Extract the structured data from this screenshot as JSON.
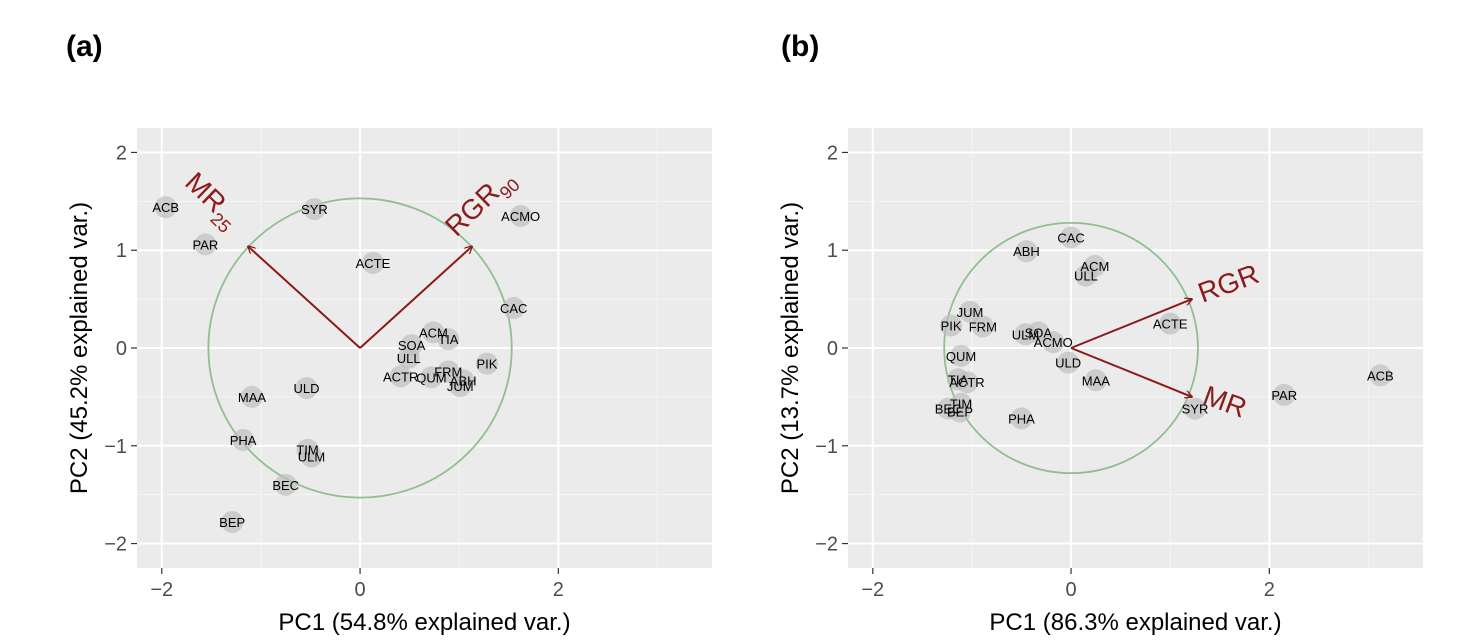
{
  "panels": [
    {
      "label": "(a)"
    },
    {
      "label": "(b)"
    }
  ],
  "chart_data": [
    {
      "type": "scatter",
      "subtype": "pca-biplot",
      "xlabel": "PC1 (54.8% explained var.)",
      "ylabel": "PC2 (45.2% explained var.)",
      "xlim": [
        -2.25,
        3.55
      ],
      "ylim": [
        -2.25,
        2.25
      ],
      "xticks": [
        -2,
        0,
        2
      ],
      "yticks": [
        -2,
        -1,
        0,
        1,
        2
      ],
      "tick_labels_x": [
        "−2",
        "0",
        "2"
      ],
      "tick_labels_y": [
        "−2",
        "−1",
        "0",
        "1",
        "2"
      ],
      "grid": true,
      "circle_radius": 1.53,
      "circle_color": "#8fbf8f",
      "arrow_color": "#8b1a1a",
      "points": [
        {
          "label": "ACB",
          "x": -1.96,
          "y": 1.44
        },
        {
          "label": "PAR",
          "x": -1.56,
          "y": 1.06
        },
        {
          "label": "SYR",
          "x": -0.46,
          "y": 1.42
        },
        {
          "label": "ACTE",
          "x": 0.13,
          "y": 0.87
        },
        {
          "label": "ACMO",
          "x": 1.62,
          "y": 1.35
        },
        {
          "label": "CAC",
          "x": 1.55,
          "y": 0.41
        },
        {
          "label": "ACM",
          "x": 0.74,
          "y": 0.16
        },
        {
          "label": "TIA",
          "x": 0.89,
          "y": 0.09
        },
        {
          "label": "SOA",
          "x": 0.52,
          "y": 0.03
        },
        {
          "label": "ULL",
          "x": 0.49,
          "y": -0.1
        },
        {
          "label": "PIK",
          "x": 1.28,
          "y": -0.16
        },
        {
          "label": "FRM",
          "x": 0.89,
          "y": -0.24
        },
        {
          "label": "ACTR",
          "x": 0.41,
          "y": -0.29
        },
        {
          "label": "QUM",
          "x": 0.72,
          "y": -0.3
        },
        {
          "label": "ABH",
          "x": 1.04,
          "y": -0.33
        },
        {
          "label": "JUM",
          "x": 1.01,
          "y": -0.39
        },
        {
          "label": "MAA",
          "x": -1.09,
          "y": -0.5
        },
        {
          "label": "ULD",
          "x": -0.54,
          "y": -0.41
        },
        {
          "label": "PHA",
          "x": -1.18,
          "y": -0.94
        },
        {
          "label": "TIM",
          "x": -0.53,
          "y": -1.04
        },
        {
          "label": "ULM",
          "x": -0.49,
          "y": -1.11
        },
        {
          "label": "BEC",
          "x": -0.75,
          "y": -1.4
        },
        {
          "label": "BEP",
          "x": -1.29,
          "y": -1.78
        }
      ],
      "arrows": [
        {
          "name": "MR",
          "sub": "25",
          "x": -1.13,
          "y": 1.04,
          "lx": -1.55,
          "ly": 1.45,
          "angle": 44
        },
        {
          "name": "RGR",
          "sub": "90",
          "x": 1.13,
          "y": 1.04,
          "lx": 1.27,
          "ly": 1.42,
          "angle": -44
        }
      ]
    },
    {
      "type": "scatter",
      "subtype": "pca-biplot",
      "xlabel": "PC1 (86.3% explained var.)",
      "ylabel": "PC2 (13.7% explained var.)",
      "xlim": [
        -2.25,
        3.55
      ],
      "ylim": [
        -2.25,
        2.25
      ],
      "xticks": [
        -2,
        0,
        2
      ],
      "yticks": [
        -2,
        -1,
        0,
        1,
        2
      ],
      "tick_labels_x": [
        "−2",
        "0",
        "2"
      ],
      "tick_labels_y": [
        "−2",
        "−1",
        "0",
        "1",
        "2"
      ],
      "grid": true,
      "circle_radius": 1.28,
      "circle_color": "#8fbf8f",
      "arrow_color": "#8b1a1a",
      "points": [
        {
          "label": "CAC",
          "x": 0.0,
          "y": 1.13
        },
        {
          "label": "ABH",
          "x": -0.45,
          "y": 0.99
        },
        {
          "label": "ACM",
          "x": 0.24,
          "y": 0.84
        },
        {
          "label": "ULL",
          "x": 0.15,
          "y": 0.74
        },
        {
          "label": "JUM",
          "x": -1.02,
          "y": 0.37
        },
        {
          "label": "PIK",
          "x": -1.21,
          "y": 0.23
        },
        {
          "label": "FRM",
          "x": -0.89,
          "y": 0.22
        },
        {
          "label": "ULM",
          "x": -0.46,
          "y": 0.14
        },
        {
          "label": "SOA",
          "x": -0.33,
          "y": 0.16
        },
        {
          "label": "ACMO",
          "x": -0.18,
          "y": 0.06
        },
        {
          "label": "ACTE",
          "x": 1.0,
          "y": 0.25
        },
        {
          "label": "QUM",
          "x": -1.11,
          "y": -0.08
        },
        {
          "label": "ULD",
          "x": -0.03,
          "y": -0.15
        },
        {
          "label": "TIA",
          "x": -1.14,
          "y": -0.32
        },
        {
          "label": "ACTR",
          "x": -1.05,
          "y": -0.35
        },
        {
          "label": "MAA",
          "x": 0.25,
          "y": -0.33
        },
        {
          "label": "TIM",
          "x": -1.11,
          "y": -0.57
        },
        {
          "label": "BEC",
          "x": -1.24,
          "y": -0.62
        },
        {
          "label": "BEP",
          "x": -1.12,
          "y": -0.65
        },
        {
          "label": "PHA",
          "x": -0.5,
          "y": -0.72
        },
        {
          "label": "SYR",
          "x": 1.25,
          "y": -0.62
        },
        {
          "label": "PAR",
          "x": 2.15,
          "y": -0.48
        },
        {
          "label": "ACB",
          "x": 3.12,
          "y": -0.28
        }
      ],
      "arrows": [
        {
          "name": "RGR",
          "sub": "",
          "x": 1.22,
          "y": 0.5,
          "lx": 1.62,
          "ly": 0.57,
          "angle": -20
        },
        {
          "name": "MR",
          "sub": "",
          "x": 1.22,
          "y": -0.5,
          "lx": 1.52,
          "ly": -0.64,
          "angle": 20
        }
      ]
    }
  ]
}
